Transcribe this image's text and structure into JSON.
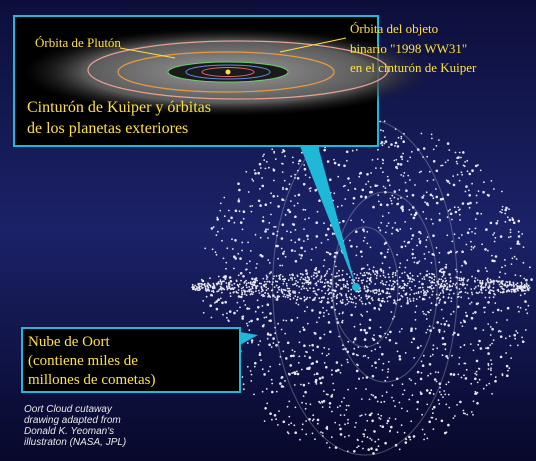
{
  "inset": {
    "pluto_orbit_label": "Órbita de Plutón",
    "kuiper_object_label": [
      "Órbita del objeto",
      "binario \"1998 WW31\"",
      "en el cinturón de Kuiper"
    ],
    "title": [
      "Cinturón de Kuiper y órbitas",
      "de los planetas exteriores"
    ]
  },
  "oort_label": [
    "Nube de Oort",
    "(contiene miles de",
    "millones de cometas)"
  ],
  "credit": [
    "Oort Cloud cutaway",
    "drawing adapted from",
    "Donald K. Yeoman's",
    "illustraton (NASA, JPL)"
  ]
}
